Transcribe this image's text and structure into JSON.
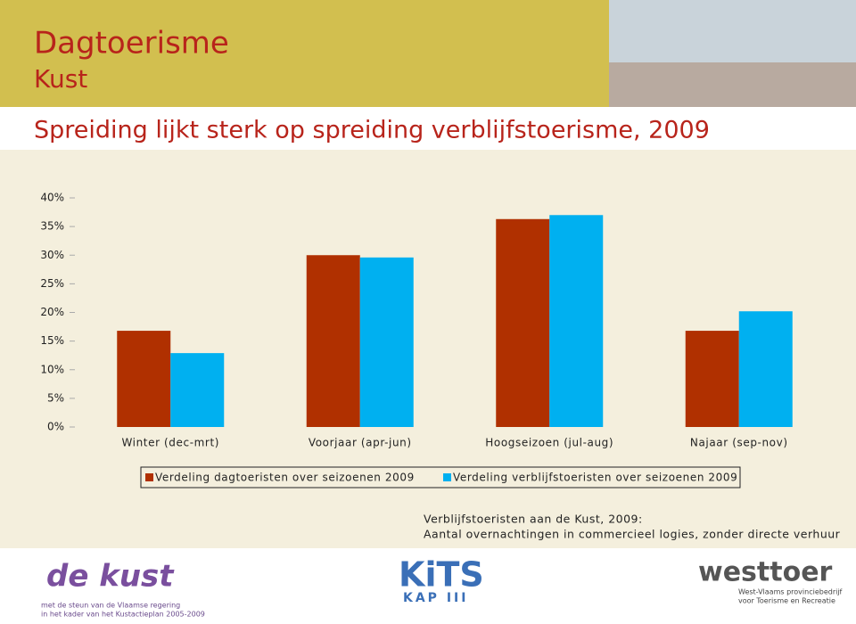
{
  "header": {
    "title": "Dagtoerisme",
    "subtitle": "Kust"
  },
  "chart_data": {
    "type": "bar",
    "title": "Spreiding lijkt sterk op spreiding verblijfstoerisme, 2009",
    "categories": [
      "Winter (dec-mrt)",
      "Voorjaar (apr-jun)",
      "Hoogseizoen (jul-aug)",
      "Najaar (sep-nov)"
    ],
    "series": [
      {
        "name": "Verdeling dagtoeristen over seizoenen 2009",
        "color": "#b03000",
        "values": [
          16.8,
          30.0,
          36.3,
          16.8
        ]
      },
      {
        "name": "Verdeling verblijfstoeristen over seizoenen 2009",
        "color": "#00b0f0",
        "values": [
          12.9,
          29.6,
          37.0,
          20.2
        ]
      }
    ],
    "ylim": [
      0,
      40
    ],
    "yticks": [
      {
        "value": 0,
        "label": "0%"
      },
      {
        "value": 5,
        "label": "5%"
      },
      {
        "value": 10,
        "label": "10%"
      },
      {
        "value": 15,
        "label": "15%"
      },
      {
        "value": 20,
        "label": "20%"
      },
      {
        "value": 25,
        "label": "25%"
      },
      {
        "value": 30,
        "label": "30%"
      },
      {
        "value": 35,
        "label": "35%"
      },
      {
        "value": 40,
        "label": "40%"
      }
    ],
    "grid": false,
    "annotations": [
      "Verblijfstoeristen aan de Kust, 2009:",
      "Aantal overnachtingen in commercieel logies, zonder directe verhuur"
    ]
  },
  "footer": {
    "logo_left": "de kust",
    "logo_left_caption": [
      "met de steun van de Vlaamse regering",
      "in het kader van het Kustactieplan 2005-2009"
    ],
    "logo_middle": [
      "KiTS",
      "KAP III"
    ],
    "logo_right": "westtoer",
    "logo_right_caption": [
      "West-Vlaams provinciebedrijf",
      "voor Toerisme en Recreatie"
    ]
  }
}
